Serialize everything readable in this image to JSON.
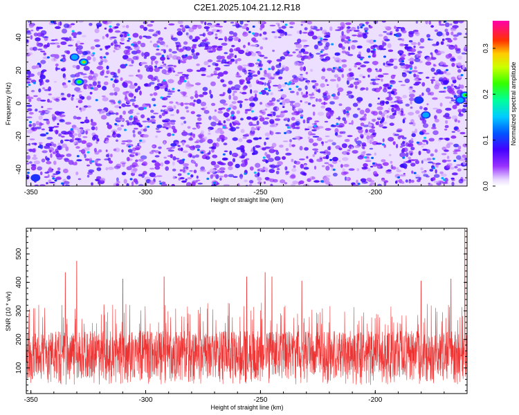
{
  "title": "C2E1.2025.104.21.12.R18",
  "chart_data": [
    {
      "type": "heatmap",
      "title": "",
      "xlabel": "Height of straight line (km)",
      "ylabel": "Frequency (Hz)",
      "xlim": [
        -352,
        -160
      ],
      "ylim": [
        -50,
        50
      ],
      "xticks": [
        -350,
        -300,
        -250,
        -200
      ],
      "yticks": [
        -40,
        -20,
        0,
        20,
        40
      ],
      "colorbar": {
        "label": "Normalized spectral amplitude",
        "range": [
          0.0,
          0.36
        ],
        "ticks": [
          0.0,
          0.1,
          0.2,
          0.3
        ],
        "colormap": "rainbow (white-purple-blue-cyan-green-yellow-red-magenta)"
      },
      "background_range": [
        0.02,
        0.09
      ],
      "hotspots": [
        {
          "x": -327,
          "y": 25,
          "value": 0.3
        },
        {
          "x": -329,
          "y": 13,
          "value": 0.22
        },
        {
          "x": -331,
          "y": 28,
          "value": 0.16
        },
        {
          "x": -161,
          "y": 5,
          "value": 0.22
        },
        {
          "x": -163,
          "y": 2,
          "value": 0.15
        },
        {
          "x": -178,
          "y": -7,
          "value": 0.15
        },
        {
          "x": -181,
          "y": 2,
          "value": 0.13
        },
        {
          "x": -348,
          "y": -45,
          "value": 0.13
        }
      ]
    },
    {
      "type": "line",
      "title": "",
      "xlabel": "Height of straight line (km)",
      "ylabel": "SNR (10 * v/v)",
      "xlim": [
        -352,
        -160
      ],
      "ylim": [
        10,
        590
      ],
      "xticks": [
        -350,
        -300,
        -250,
        -200
      ],
      "yticks": [
        100,
        200,
        300,
        400,
        500
      ],
      "series": [
        {
          "name": "",
          "color": "#ee3333",
          "baseline_range": [
            40,
            230
          ],
          "typical_peak_range": [
            250,
            330
          ],
          "peaks": [
            {
              "x": -330,
              "y": 475
            },
            {
              "x": -335,
              "y": 435
            },
            {
              "x": -310,
              "y": 412
            },
            {
              "x": -292,
              "y": 420
            },
            {
              "x": -256,
              "y": 420
            },
            {
              "x": -248,
              "y": 435
            },
            {
              "x": -245,
              "y": 420
            },
            {
              "x": -232,
              "y": 405
            },
            {
              "x": -180,
              "y": 405
            },
            {
              "x": -167,
              "y": 412
            },
            {
              "x": -161,
              "y": 590
            }
          ]
        }
      ]
    }
  ]
}
